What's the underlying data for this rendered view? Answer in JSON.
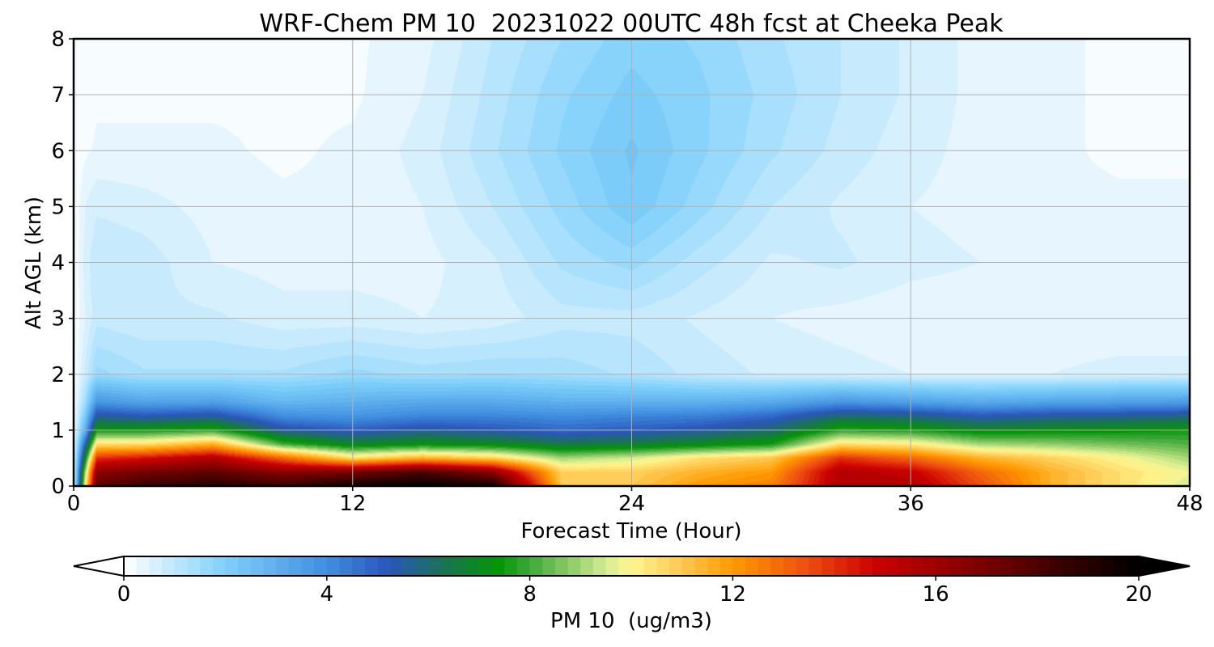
{
  "chart_data": {
    "type": "heatmap",
    "title": "WRF-Chem PM 10  20231022 00UTC 48h fcst at Cheeka Peak",
    "xlabel": "Forecast Time (Hour)",
    "ylabel": "Alt AGL (km)",
    "xlim": [
      0,
      48
    ],
    "ylim": [
      0,
      8
    ],
    "x_ticks": [
      0,
      12,
      24,
      36,
      48
    ],
    "y_ticks": [
      0,
      1,
      2,
      3,
      4,
      5,
      6,
      7,
      8
    ],
    "grid": true,
    "colorbar": {
      "label": "PM 10  (ug/m3)",
      "range": [
        0,
        20
      ],
      "ticks": [
        0,
        4,
        8,
        12,
        16,
        20
      ],
      "extend": "both",
      "palette": [
        {
          "v": 0,
          "c": "#ffffff"
        },
        {
          "v": 2,
          "c": "#7fd0fb"
        },
        {
          "v": 4,
          "c": "#3f8fe0"
        },
        {
          "v": 5.2,
          "c": "#2a55bb"
        },
        {
          "v": 6.4,
          "c": "#18764e"
        },
        {
          "v": 7.4,
          "c": "#059605"
        },
        {
          "v": 8,
          "c": "#3ea83a"
        },
        {
          "v": 9.5,
          "c": "#d5ec91"
        },
        {
          "v": 10,
          "c": "#fff68f"
        },
        {
          "v": 11,
          "c": "#ffc850"
        },
        {
          "v": 12,
          "c": "#ff9a00"
        },
        {
          "v": 13.5,
          "c": "#ee4c10"
        },
        {
          "v": 14.8,
          "c": "#cc0000"
        },
        {
          "v": 16.5,
          "c": "#8c0000"
        },
        {
          "v": 18.5,
          "c": "#380000"
        },
        {
          "v": 20,
          "c": "#000000"
        }
      ]
    },
    "field": {
      "x": [
        0,
        0.5,
        1,
        3,
        6,
        9,
        12,
        15,
        18,
        21,
        24,
        27,
        30,
        33,
        36,
        39,
        42,
        45,
        48
      ],
      "y": [
        0,
        0.25,
        0.5,
        0.75,
        1,
        1.25,
        1.5,
        2,
        3,
        4,
        5,
        6,
        7,
        8
      ],
      "z": [
        [
          0,
          10,
          17.5,
          18.5,
          19,
          18.5,
          19.5,
          20,
          19.5,
          11,
          11,
          12,
          12.5,
          15.5,
          15.5,
          13.5,
          11.5,
          10.5,
          9.5
        ],
        [
          0,
          9,
          16.5,
          17,
          17.5,
          16.5,
          17,
          18,
          16.5,
          10.8,
          10.8,
          11.5,
          12,
          15.5,
          15,
          13,
          11.5,
          10.5,
          9.8
        ],
        [
          0,
          7,
          14,
          14.5,
          15.5,
          13,
          10.5,
          11.5,
          10.8,
          9,
          9.5,
          10.5,
          11,
          14,
          13,
          11.5,
          10.8,
          10,
          9
        ],
        [
          0,
          5,
          10.5,
          10.5,
          11.5,
          8,
          6.8,
          7.2,
          7,
          6.4,
          6.6,
          7,
          7.5,
          10.5,
          10.2,
          9,
          8.8,
          8.5,
          8.2
        ],
        [
          0,
          3,
          7.5,
          7.5,
          7.8,
          5.5,
          5,
          5.5,
          5.2,
          4.8,
          5,
          5.4,
          6,
          7.8,
          7.6,
          7,
          7.2,
          7.3,
          7.5
        ],
        [
          0,
          2.2,
          5.5,
          5.2,
          5.5,
          4,
          3.8,
          4.2,
          4.2,
          4,
          4.2,
          4.3,
          4.8,
          6,
          5.8,
          5.2,
          5.5,
          5.6,
          5.8
        ],
        [
          0,
          1.5,
          3.8,
          3.4,
          3.5,
          2.8,
          3,
          3.2,
          3.2,
          3,
          3,
          3,
          3.2,
          3.8,
          3.5,
          3.2,
          3.4,
          3.5,
          3.6
        ],
        [
          0,
          0.8,
          1.6,
          1.3,
          1.3,
          1.3,
          1.6,
          1.4,
          1.5,
          1.4,
          1.2,
          0.9,
          0.7,
          0.6,
          0.5,
          0.5,
          0.5,
          0.6,
          0.6
        ],
        [
          0,
          0.5,
          0.9,
          0.8,
          0.8,
          0.6,
          0.6,
          0.5,
          0.6,
          0.9,
          0.9,
          0.7,
          0.5,
          0.4,
          0.3,
          0.3,
          0.3,
          0.3,
          0.3
        ],
        [
          0,
          0.6,
          1,
          0.9,
          0.5,
          0.4,
          0.4,
          0.4,
          0.7,
          1.3,
          1.6,
          1.1,
          0.7,
          0.8,
          0.6,
          0.5,
          0.4,
          0.4,
          0.4
        ],
        [
          0,
          0.5,
          0.7,
          0.6,
          0.4,
          0.3,
          0.3,
          0.5,
          1,
          1.6,
          2.2,
          1.6,
          1,
          0.7,
          0.5,
          0.4,
          0.3,
          0.3,
          0.3
        ],
        [
          0,
          0.2,
          0.3,
          0.3,
          0.3,
          0.2,
          0.3,
          0.6,
          1.2,
          1.8,
          2.3,
          1.8,
          1.3,
          0.9,
          0.6,
          0.4,
          0.3,
          0.2,
          0.2
        ],
        [
          0,
          0.1,
          0.2,
          0.2,
          0.2,
          0.2,
          0.2,
          0.5,
          1.1,
          1.7,
          2.1,
          1.8,
          1.4,
          1,
          0.7,
          0.4,
          0.3,
          0.2,
          0.2
        ],
        [
          0,
          0.1,
          0.2,
          0.2,
          0.2,
          0.2,
          0.2,
          0.4,
          1,
          1.5,
          1.9,
          1.7,
          1.3,
          1,
          0.7,
          0.4,
          0.3,
          0.2,
          0.2
        ]
      ]
    }
  }
}
